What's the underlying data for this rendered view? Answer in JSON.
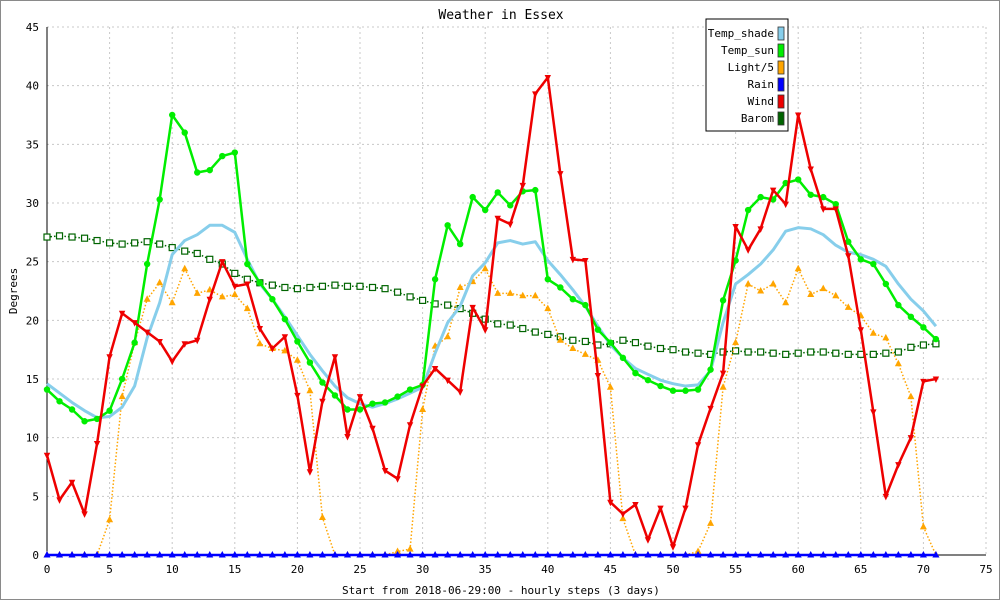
{
  "chart_data": {
    "type": "line",
    "title": "Weather in Essex",
    "xlabel": "Start from 2018-06-29:00 - hourly steps (3 days)",
    "ylabel": "Degrees",
    "xlim": [
      0,
      75
    ],
    "ylim": [
      0,
      45
    ],
    "x_ticks": [
      0,
      5,
      10,
      15,
      20,
      25,
      30,
      35,
      40,
      45,
      50,
      55,
      60,
      65,
      70,
      75
    ],
    "y_ticks": [
      0,
      5,
      10,
      15,
      20,
      25,
      30,
      35,
      40,
      45
    ],
    "grid": true,
    "legend_position": "top-right",
    "series": [
      {
        "name": "Temp_shade",
        "color": "#87ceeb",
        "marker": "none",
        "style": "solid",
        "values": [
          14.6,
          13.8,
          13,
          12.3,
          11.7,
          11.8,
          12.6,
          14.4,
          18.5,
          21.5,
          25.6,
          26.8,
          27.3,
          28.1,
          28.1,
          27.5,
          25.2,
          23.1,
          21.8,
          20.3,
          18.7,
          17.1,
          15.7,
          14.4,
          13.4,
          12.9,
          12.6,
          12.9,
          13.3,
          13.8,
          14.3,
          17.2,
          19.8,
          21.2,
          23.8,
          24.9,
          26.6,
          26.8,
          26.5,
          26.7,
          25.1,
          23.9,
          22.6,
          21.2,
          19.5,
          17.9,
          16.8,
          15.9,
          15.4,
          14.9,
          14.6,
          14.4,
          14.5,
          15.7,
          19.8,
          23.1,
          23.9,
          24.8,
          26,
          27.6,
          27.9,
          27.8,
          27.3,
          26.4,
          25.8,
          25.6,
          25.2,
          24.6,
          23.1,
          21.8,
          20.8,
          19.5
        ]
      },
      {
        "name": "Temp_sun",
        "color": "#00ee00",
        "marker": "circle",
        "style": "solid",
        "values": [
          14.1,
          13.1,
          12.4,
          11.4,
          11.6,
          12.3,
          15,
          18.1,
          24.8,
          30.3,
          37.5,
          36,
          32.6,
          32.8,
          34,
          34.3,
          24.8,
          23.2,
          21.8,
          20.1,
          18.2,
          16.4,
          14.7,
          13.6,
          12.4,
          12.4,
          12.9,
          13,
          13.5,
          14.1,
          14.5,
          23.5,
          28.1,
          26.5,
          30.5,
          29.4,
          30.9,
          29.8,
          31,
          31.1,
          23.5,
          22.8,
          21.8,
          21.3,
          19.2,
          18.1,
          16.8,
          15.5,
          14.9,
          14.4,
          14,
          14,
          14.1,
          15.8,
          21.7,
          25.1,
          29.4,
          30.5,
          30.3,
          31.7,
          32,
          30.7,
          30.5,
          29.9,
          26.7,
          25.2,
          24.8,
          23.1,
          21.3,
          20.3,
          19.4,
          18.4
        ]
      },
      {
        "name": "Light/5",
        "color": "#ffa500",
        "marker": "triangle-up",
        "style": "dotted",
        "values": [
          0,
          0,
          0,
          0,
          0,
          3,
          13.5,
          18.1,
          21.8,
          23.2,
          21.5,
          24.4,
          22.3,
          22.6,
          22,
          22.2,
          21,
          18,
          17.6,
          17.4,
          16.6,
          14,
          3.2,
          0,
          0,
          0,
          0,
          0,
          0.3,
          0.5,
          12.4,
          17.8,
          18.6,
          22.8,
          23.3,
          24.4,
          22.3,
          22.3,
          22.1,
          22.1,
          21,
          18.3,
          17.6,
          17.1,
          16.6,
          14.3,
          3.1,
          0,
          0,
          0,
          0,
          0,
          0.3,
          2.7,
          14.3,
          18.1,
          23.1,
          22.5,
          23.1,
          21.5,
          24.4,
          22.2,
          22.7,
          22.1,
          21.1,
          20.4,
          18.9,
          18.5,
          16.3,
          13.5,
          2.4,
          0
        ]
      },
      {
        "name": "Rain",
        "color": "#0000ff",
        "marker": "triangle-up",
        "style": "solid",
        "values": [
          0,
          0,
          0,
          0,
          0,
          0,
          0,
          0,
          0,
          0,
          0,
          0,
          0,
          0,
          0,
          0,
          0,
          0,
          0,
          0,
          0,
          0,
          0,
          0,
          0,
          0,
          0,
          0,
          0,
          0,
          0,
          0,
          0,
          0,
          0,
          0,
          0,
          0,
          0,
          0,
          0,
          0,
          0,
          0,
          0,
          0,
          0,
          0,
          0,
          0,
          0,
          0,
          0,
          0,
          0,
          0,
          0,
          0,
          0,
          0,
          0,
          0,
          0,
          0,
          0,
          0,
          0,
          0,
          0,
          0,
          0,
          0
        ]
      },
      {
        "name": "Wind",
        "color": "#ee0000",
        "marker": "triangle-down",
        "style": "solid",
        "values": [
          8.5,
          4.7,
          6.2,
          3.5,
          9.5,
          16.9,
          20.6,
          19.8,
          19,
          18.2,
          16.5,
          18,
          18.3,
          21.8,
          25,
          22.9,
          23.1,
          19.3,
          17.6,
          18.6,
          13.6,
          7.1,
          13.1,
          16.9,
          10.1,
          13.5,
          10.8,
          7.2,
          6.5,
          11.1,
          14.4,
          15.9,
          14.9,
          13.9,
          21.1,
          19.2,
          28.7,
          28.2,
          31.5,
          39.3,
          40.7,
          32.5,
          25.2,
          25.1,
          15.3,
          4.5,
          3.5,
          4.3,
          1.3,
          4,
          0.7,
          4,
          9.4,
          12.5,
          15.5,
          28,
          26,
          27.8,
          31.1,
          29.9,
          37.5,
          32.9,
          29.5,
          29.5,
          25.5,
          19.2,
          12.2,
          5,
          7.7,
          10,
          14.8,
          15
        ]
      },
      {
        "name": "Barom",
        "color": "#006400",
        "marker": "square",
        "style": "dotted",
        "values": [
          27.1,
          27.2,
          27.1,
          27,
          26.8,
          26.6,
          26.5,
          26.6,
          26.7,
          26.5,
          26.2,
          25.9,
          25.7,
          25.2,
          24.8,
          24,
          23.5,
          23.2,
          23,
          22.8,
          22.7,
          22.8,
          22.9,
          23,
          22.9,
          22.9,
          22.8,
          22.7,
          22.4,
          22,
          21.7,
          21.4,
          21.3,
          21,
          20.6,
          20.1,
          19.7,
          19.6,
          19.3,
          19,
          18.8,
          18.6,
          18.3,
          18.2,
          17.9,
          18,
          18.3,
          18.1,
          17.8,
          17.6,
          17.5,
          17.3,
          17.2,
          17.1,
          17.3,
          17.4,
          17.3,
          17.3,
          17.2,
          17.1,
          17.2,
          17.3,
          17.3,
          17.2,
          17.1,
          17.1,
          17.1,
          17.2,
          17.3,
          17.7,
          17.9,
          18
        ]
      }
    ]
  }
}
